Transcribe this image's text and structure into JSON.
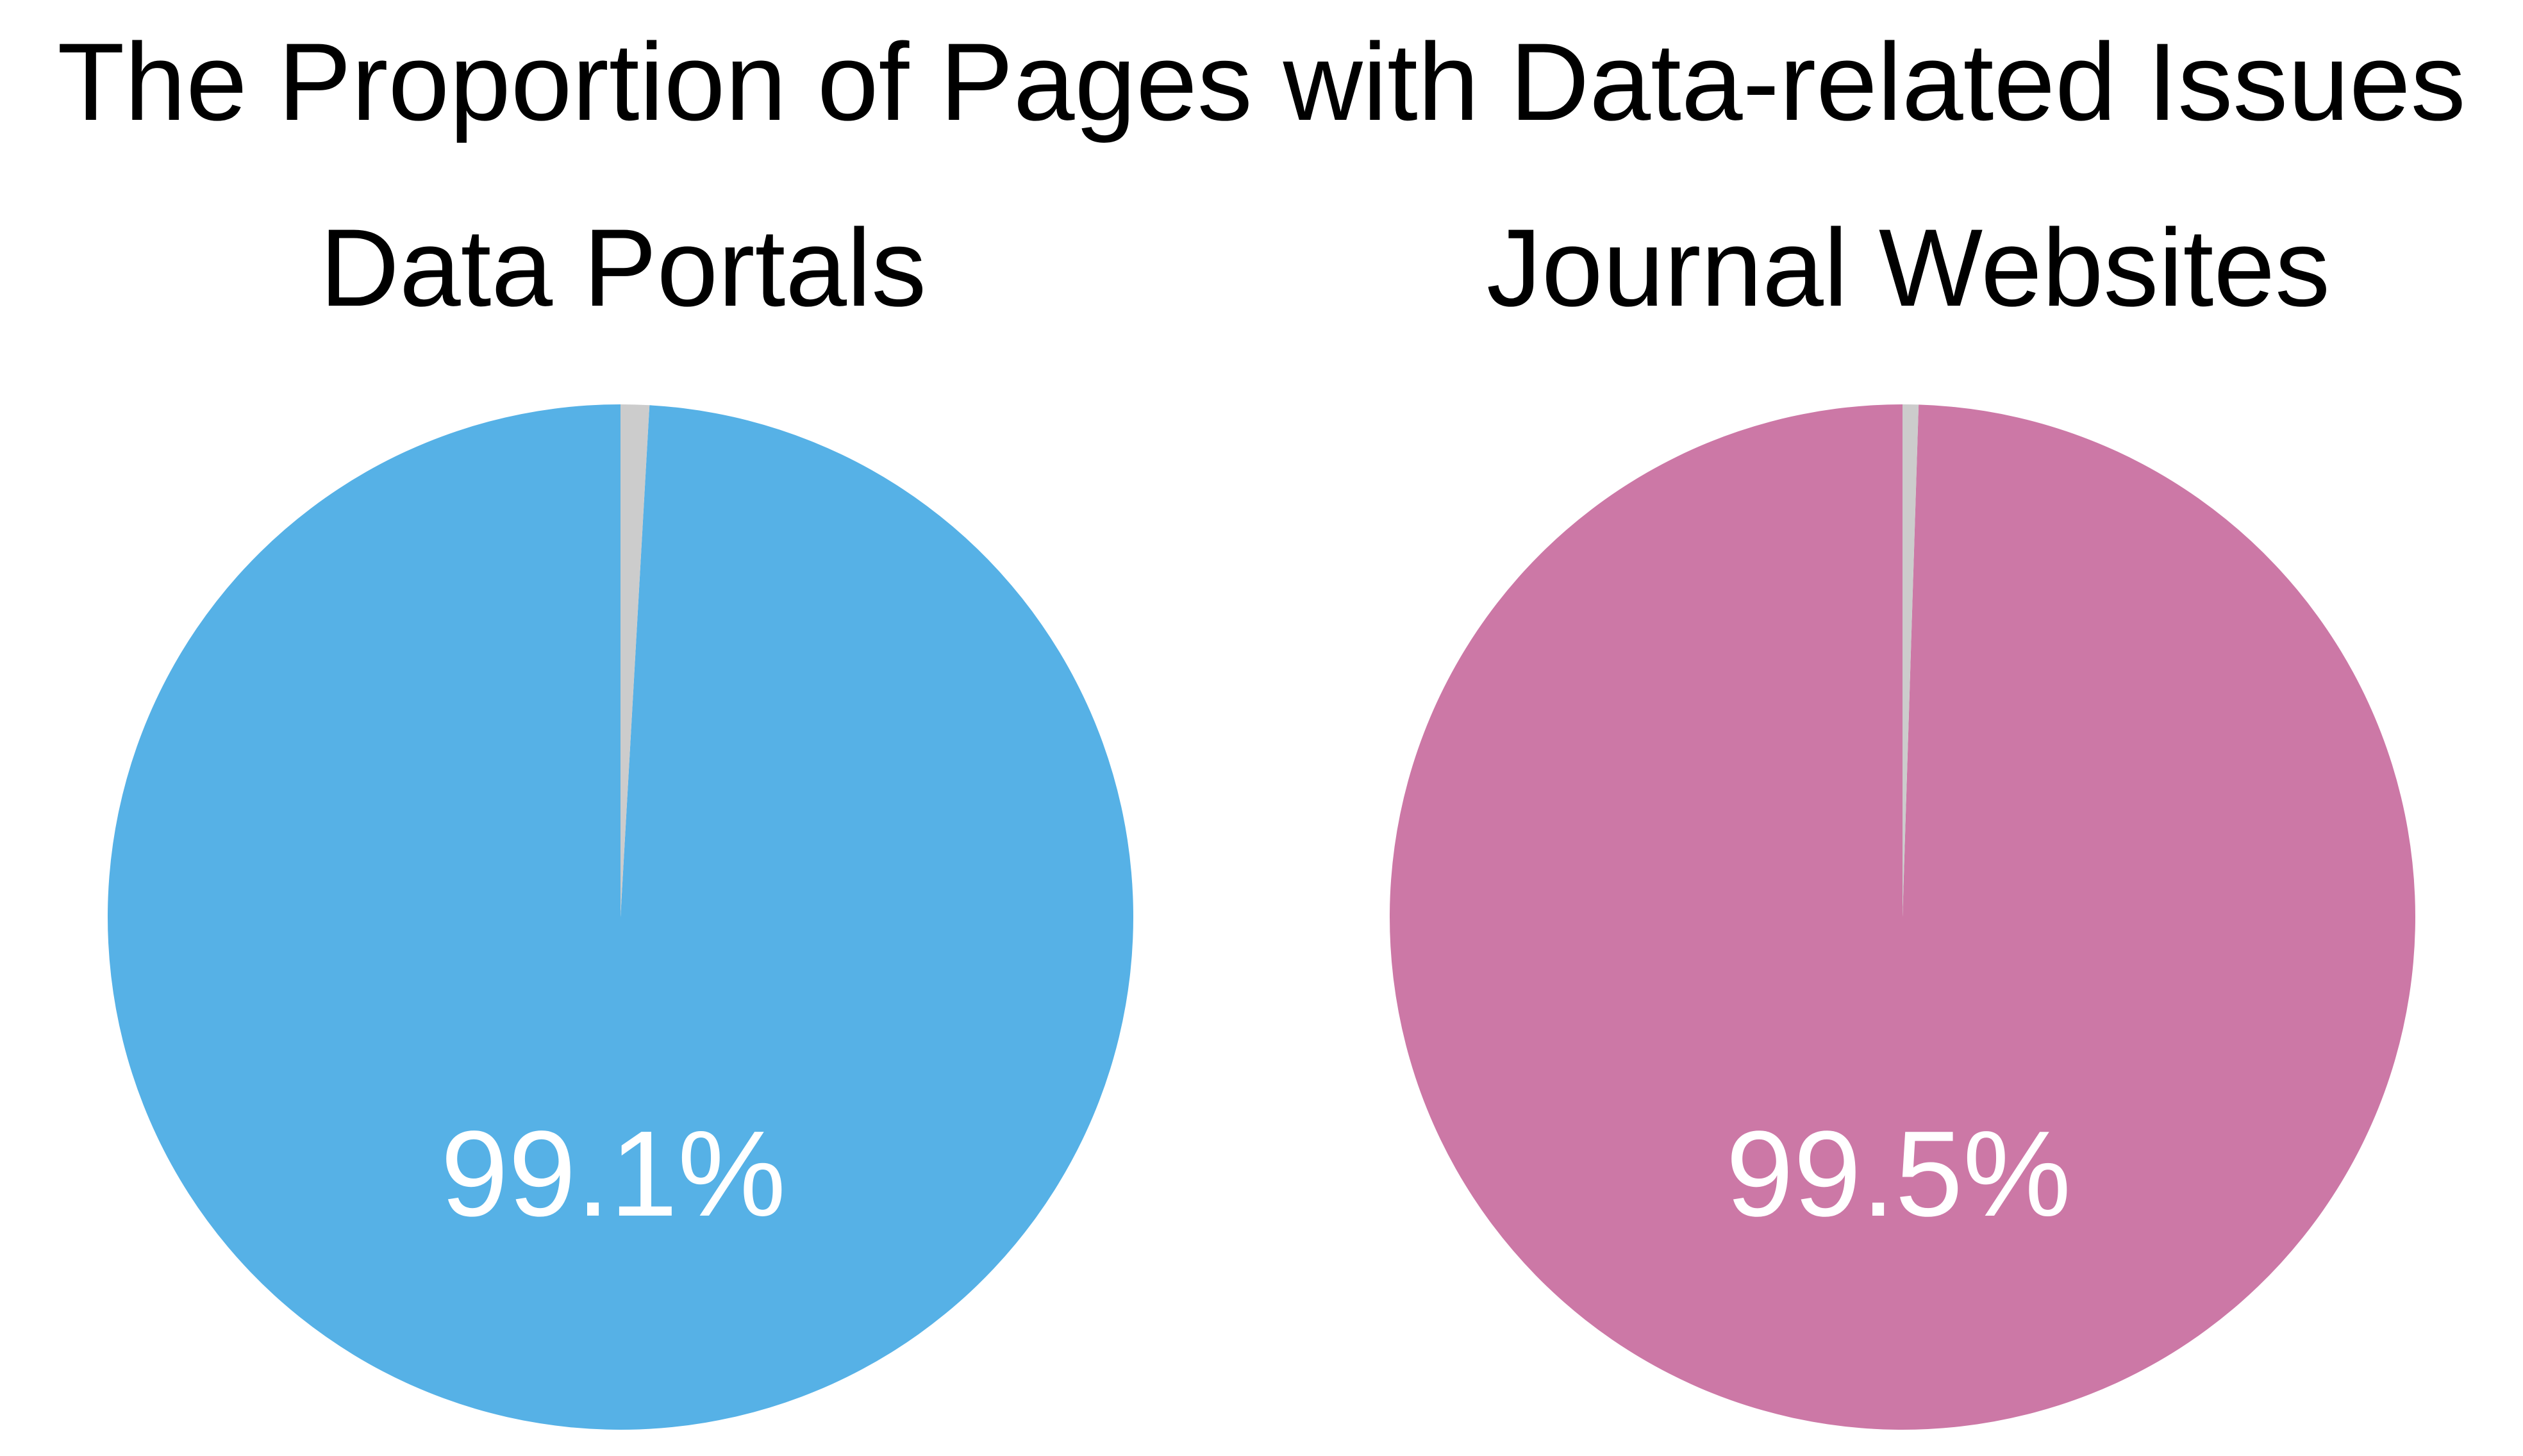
{
  "title": "The Proportion of Pages with Data-related Issues",
  "chart_data": [
    {
      "type": "pie",
      "title": "Data Portals",
      "slices": [
        {
          "value": 99.1,
          "label": "99.1%",
          "color": "#56B1E6"
        },
        {
          "value": 0.9,
          "label": "",
          "color": "#CCCCCC"
        }
      ],
      "start_angle": "top",
      "direction": "counterclockwise"
    },
    {
      "type": "pie",
      "title": "Journal Websites",
      "slices": [
        {
          "value": 99.5,
          "label": "99.5%",
          "color": "#CC78A6"
        },
        {
          "value": 0.5,
          "label": "",
          "color": "#CCCCCC"
        }
      ],
      "start_angle": "top",
      "direction": "counterclockwise"
    }
  ]
}
